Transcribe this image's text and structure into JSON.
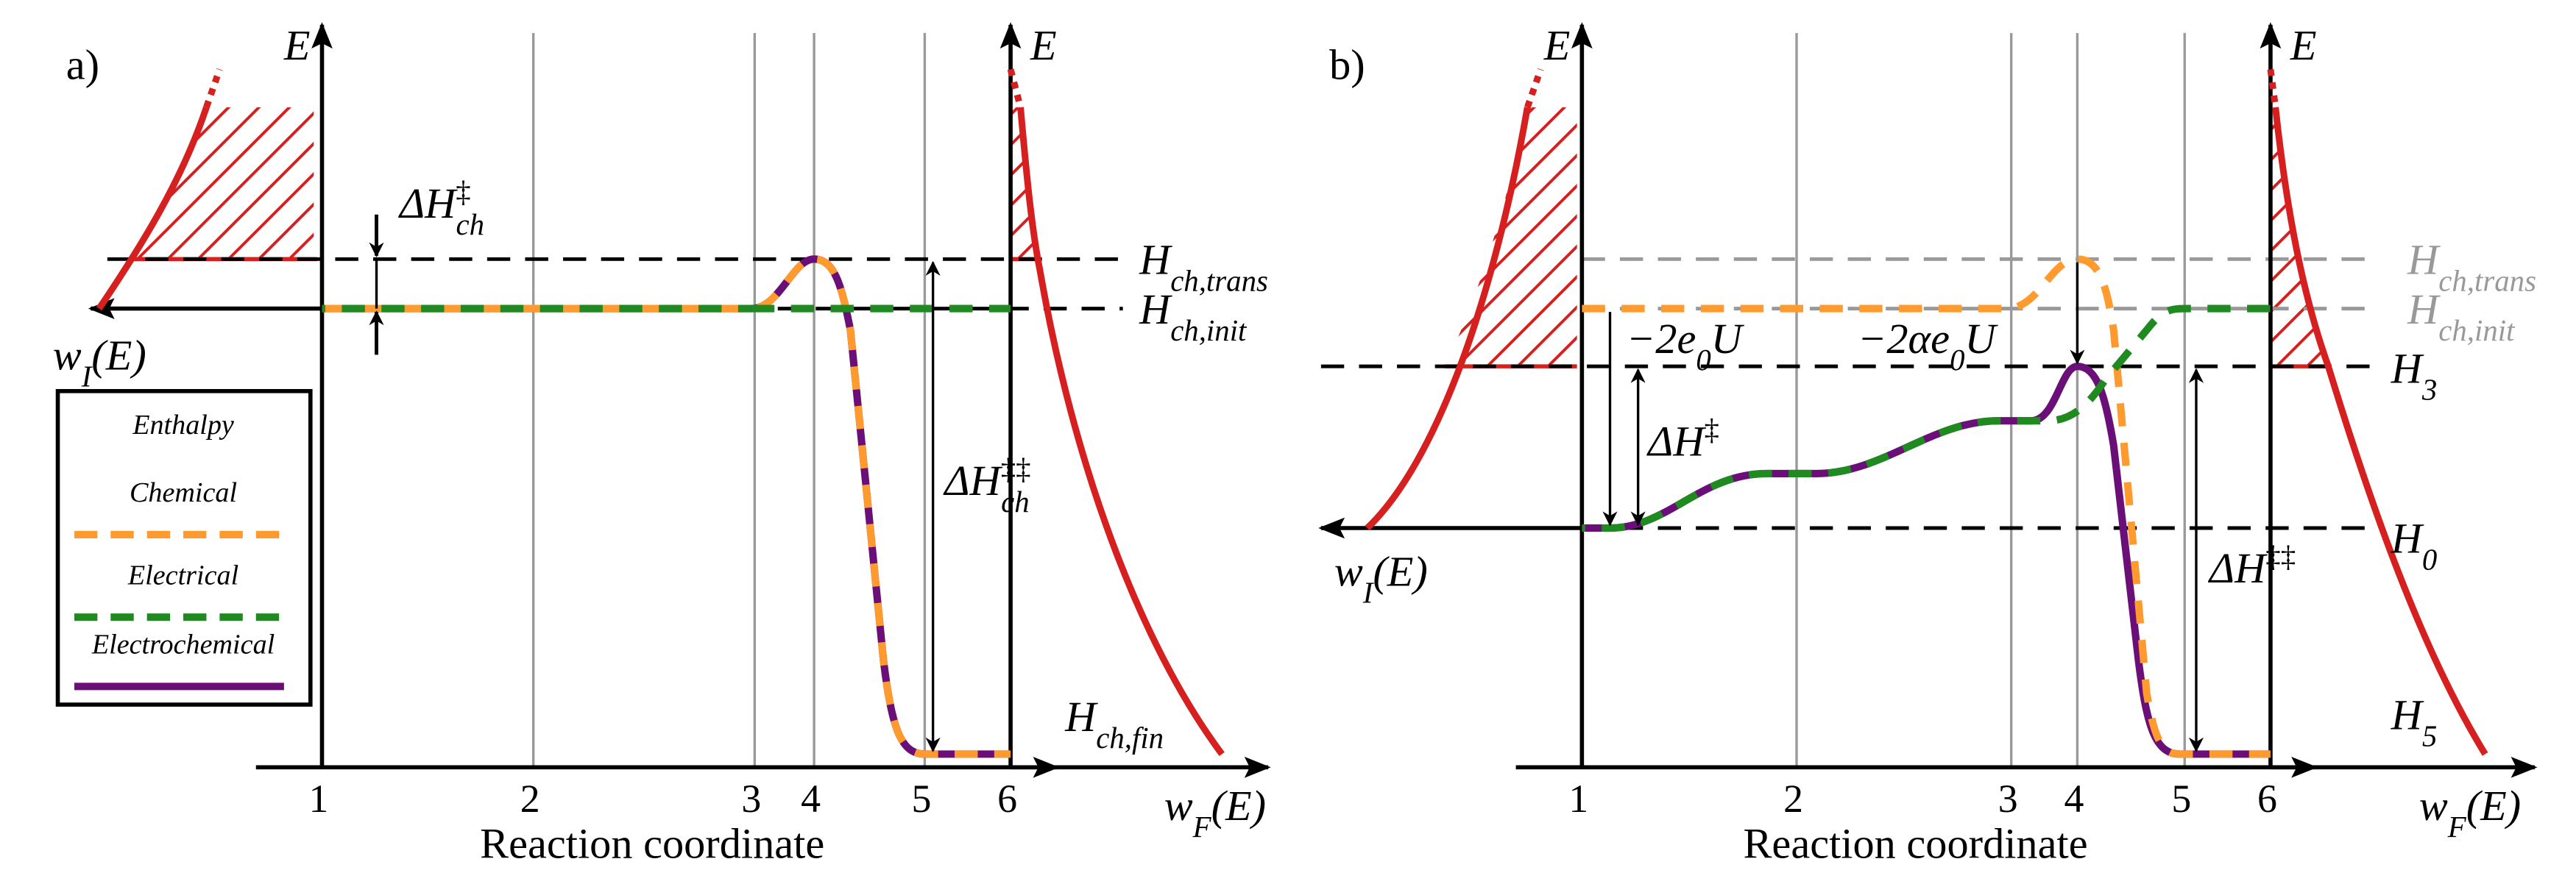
{
  "panel_a": {
    "label": "a)",
    "e_left": "E",
    "e_right": "E",
    "barrier": {
      "delta": "ΔH",
      "sup": "‡",
      "sub": "ch"
    },
    "h_trans": {
      "base": "H",
      "sub": "ch,trans"
    },
    "h_init": {
      "base": "H",
      "sub": "ch,init"
    },
    "h_fin": {
      "base": "H",
      "sub": "ch,fin"
    },
    "overall": {
      "delta": "ΔH",
      "sup": "‡‡",
      "sub": "ch"
    },
    "w_initial": {
      "base": "w",
      "sub": "I",
      "arg": "(E)"
    },
    "w_final": {
      "base": "w",
      "sub": "F",
      "arg": "(E)"
    },
    "ticks": [
      "1",
      "2",
      "3",
      "4",
      "5",
      "6"
    ],
    "x_label": "Reaction coordinate",
    "legend": {
      "title": "Enthalpy",
      "items": [
        "Chemical",
        "Electrical",
        "Electrochemical"
      ]
    }
  },
  "panel_b": {
    "label": "b)",
    "e_left": "E",
    "e_right": "E",
    "h_trans": {
      "base": "H",
      "sub": "ch,trans"
    },
    "h_init": {
      "base": "H",
      "sub": "ch,init"
    },
    "h3": {
      "base": "H",
      "sub": "3"
    },
    "h0": {
      "base": "H",
      "sub": "0"
    },
    "h5": {
      "base": "H",
      "sub": "5"
    },
    "shift_full": {
      "pre": "−2e",
      "sub": "0",
      "post": "U"
    },
    "shift_partial": {
      "pre": "−2αe",
      "sub": "0",
      "post": "U"
    },
    "barrier": {
      "delta": "ΔH",
      "sup": "‡"
    },
    "overall": {
      "delta": "ΔH",
      "sup": "‡‡"
    },
    "w_initial": {
      "base": "w",
      "sub": "I",
      "arg": "(E)"
    },
    "w_final": {
      "base": "w",
      "sub": "F",
      "arg": "(E)"
    },
    "ticks": [
      "1",
      "2",
      "3",
      "4",
      "5",
      "6"
    ],
    "x_label": "Reaction coordinate"
  }
}
